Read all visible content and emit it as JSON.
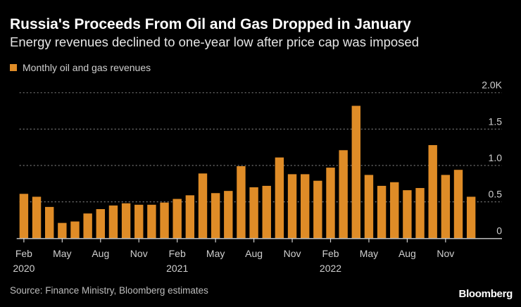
{
  "header": {
    "title": "Russia's Proceeds From Oil and Gas Dropped in January",
    "subtitle": "Energy revenues declined to one-year low after price cap was imposed"
  },
  "footer": {
    "source": "Source: Finance Ministry, Bloomberg estimates",
    "logo": "Bloomberg"
  },
  "colors": {
    "bar": "#df8c27",
    "background": "#000000",
    "grid": "#777777"
  },
  "chart_data": {
    "type": "bar",
    "title": "Russia's Proceeds From Oil and Gas Dropped in January",
    "subtitle": "Energy revenues declined to one-year low after price cap was imposed",
    "legend": {
      "position": "top-left"
    },
    "ylim": [
      0,
      2.0
    ],
    "grid": true,
    "y_ticks": [
      {
        "value": 0,
        "label": "0"
      },
      {
        "value": 0.5,
        "label": "0.5"
      },
      {
        "value": 1.0,
        "label": "1.0"
      },
      {
        "value": 1.5,
        "label": "1.5"
      },
      {
        "value": 2.0,
        "label": "2.0K"
      }
    ],
    "x_ticks": [
      {
        "index": 0,
        "label": "Feb",
        "year": "2020"
      },
      {
        "index": 3,
        "label": "May",
        "year": ""
      },
      {
        "index": 6,
        "label": "Aug",
        "year": ""
      },
      {
        "index": 9,
        "label": "Nov",
        "year": ""
      },
      {
        "index": 12,
        "label": "Feb",
        "year": "2021"
      },
      {
        "index": 15,
        "label": "May",
        "year": ""
      },
      {
        "index": 18,
        "label": "Aug",
        "year": ""
      },
      {
        "index": 21,
        "label": "Nov",
        "year": ""
      },
      {
        "index": 24,
        "label": "Feb",
        "year": "2022"
      },
      {
        "index": 27,
        "label": "May",
        "year": ""
      },
      {
        "index": 30,
        "label": "Aug",
        "year": ""
      },
      {
        "index": 33,
        "label": "Nov",
        "year": ""
      }
    ],
    "categories": [
      "2020-02",
      "2020-03",
      "2020-04",
      "2020-05",
      "2020-06",
      "2020-07",
      "2020-08",
      "2020-09",
      "2020-10",
      "2020-11",
      "2020-12",
      "2021-01",
      "2021-02",
      "2021-03",
      "2021-04",
      "2021-05",
      "2021-06",
      "2021-07",
      "2021-08",
      "2021-09",
      "2021-10",
      "2021-11",
      "2021-12",
      "2022-01",
      "2022-02",
      "2022-03",
      "2022-04",
      "2022-05",
      "2022-06",
      "2022-07",
      "2022-08",
      "2022-09",
      "2022-10",
      "2022-11",
      "2022-12",
      "2023-01"
    ],
    "series": [
      {
        "name": "Monthly oil and gas revenues",
        "values": [
          0.61,
          0.57,
          0.43,
          0.21,
          0.23,
          0.34,
          0.4,
          0.45,
          0.48,
          0.46,
          0.46,
          0.49,
          0.54,
          0.59,
          0.89,
          0.62,
          0.65,
          0.99,
          0.7,
          0.72,
          1.11,
          0.88,
          0.88,
          0.79,
          0.97,
          1.21,
          1.82,
          0.87,
          0.72,
          0.77,
          0.66,
          0.69,
          1.28,
          0.87,
          0.94,
          0.57
        ]
      }
    ]
  }
}
